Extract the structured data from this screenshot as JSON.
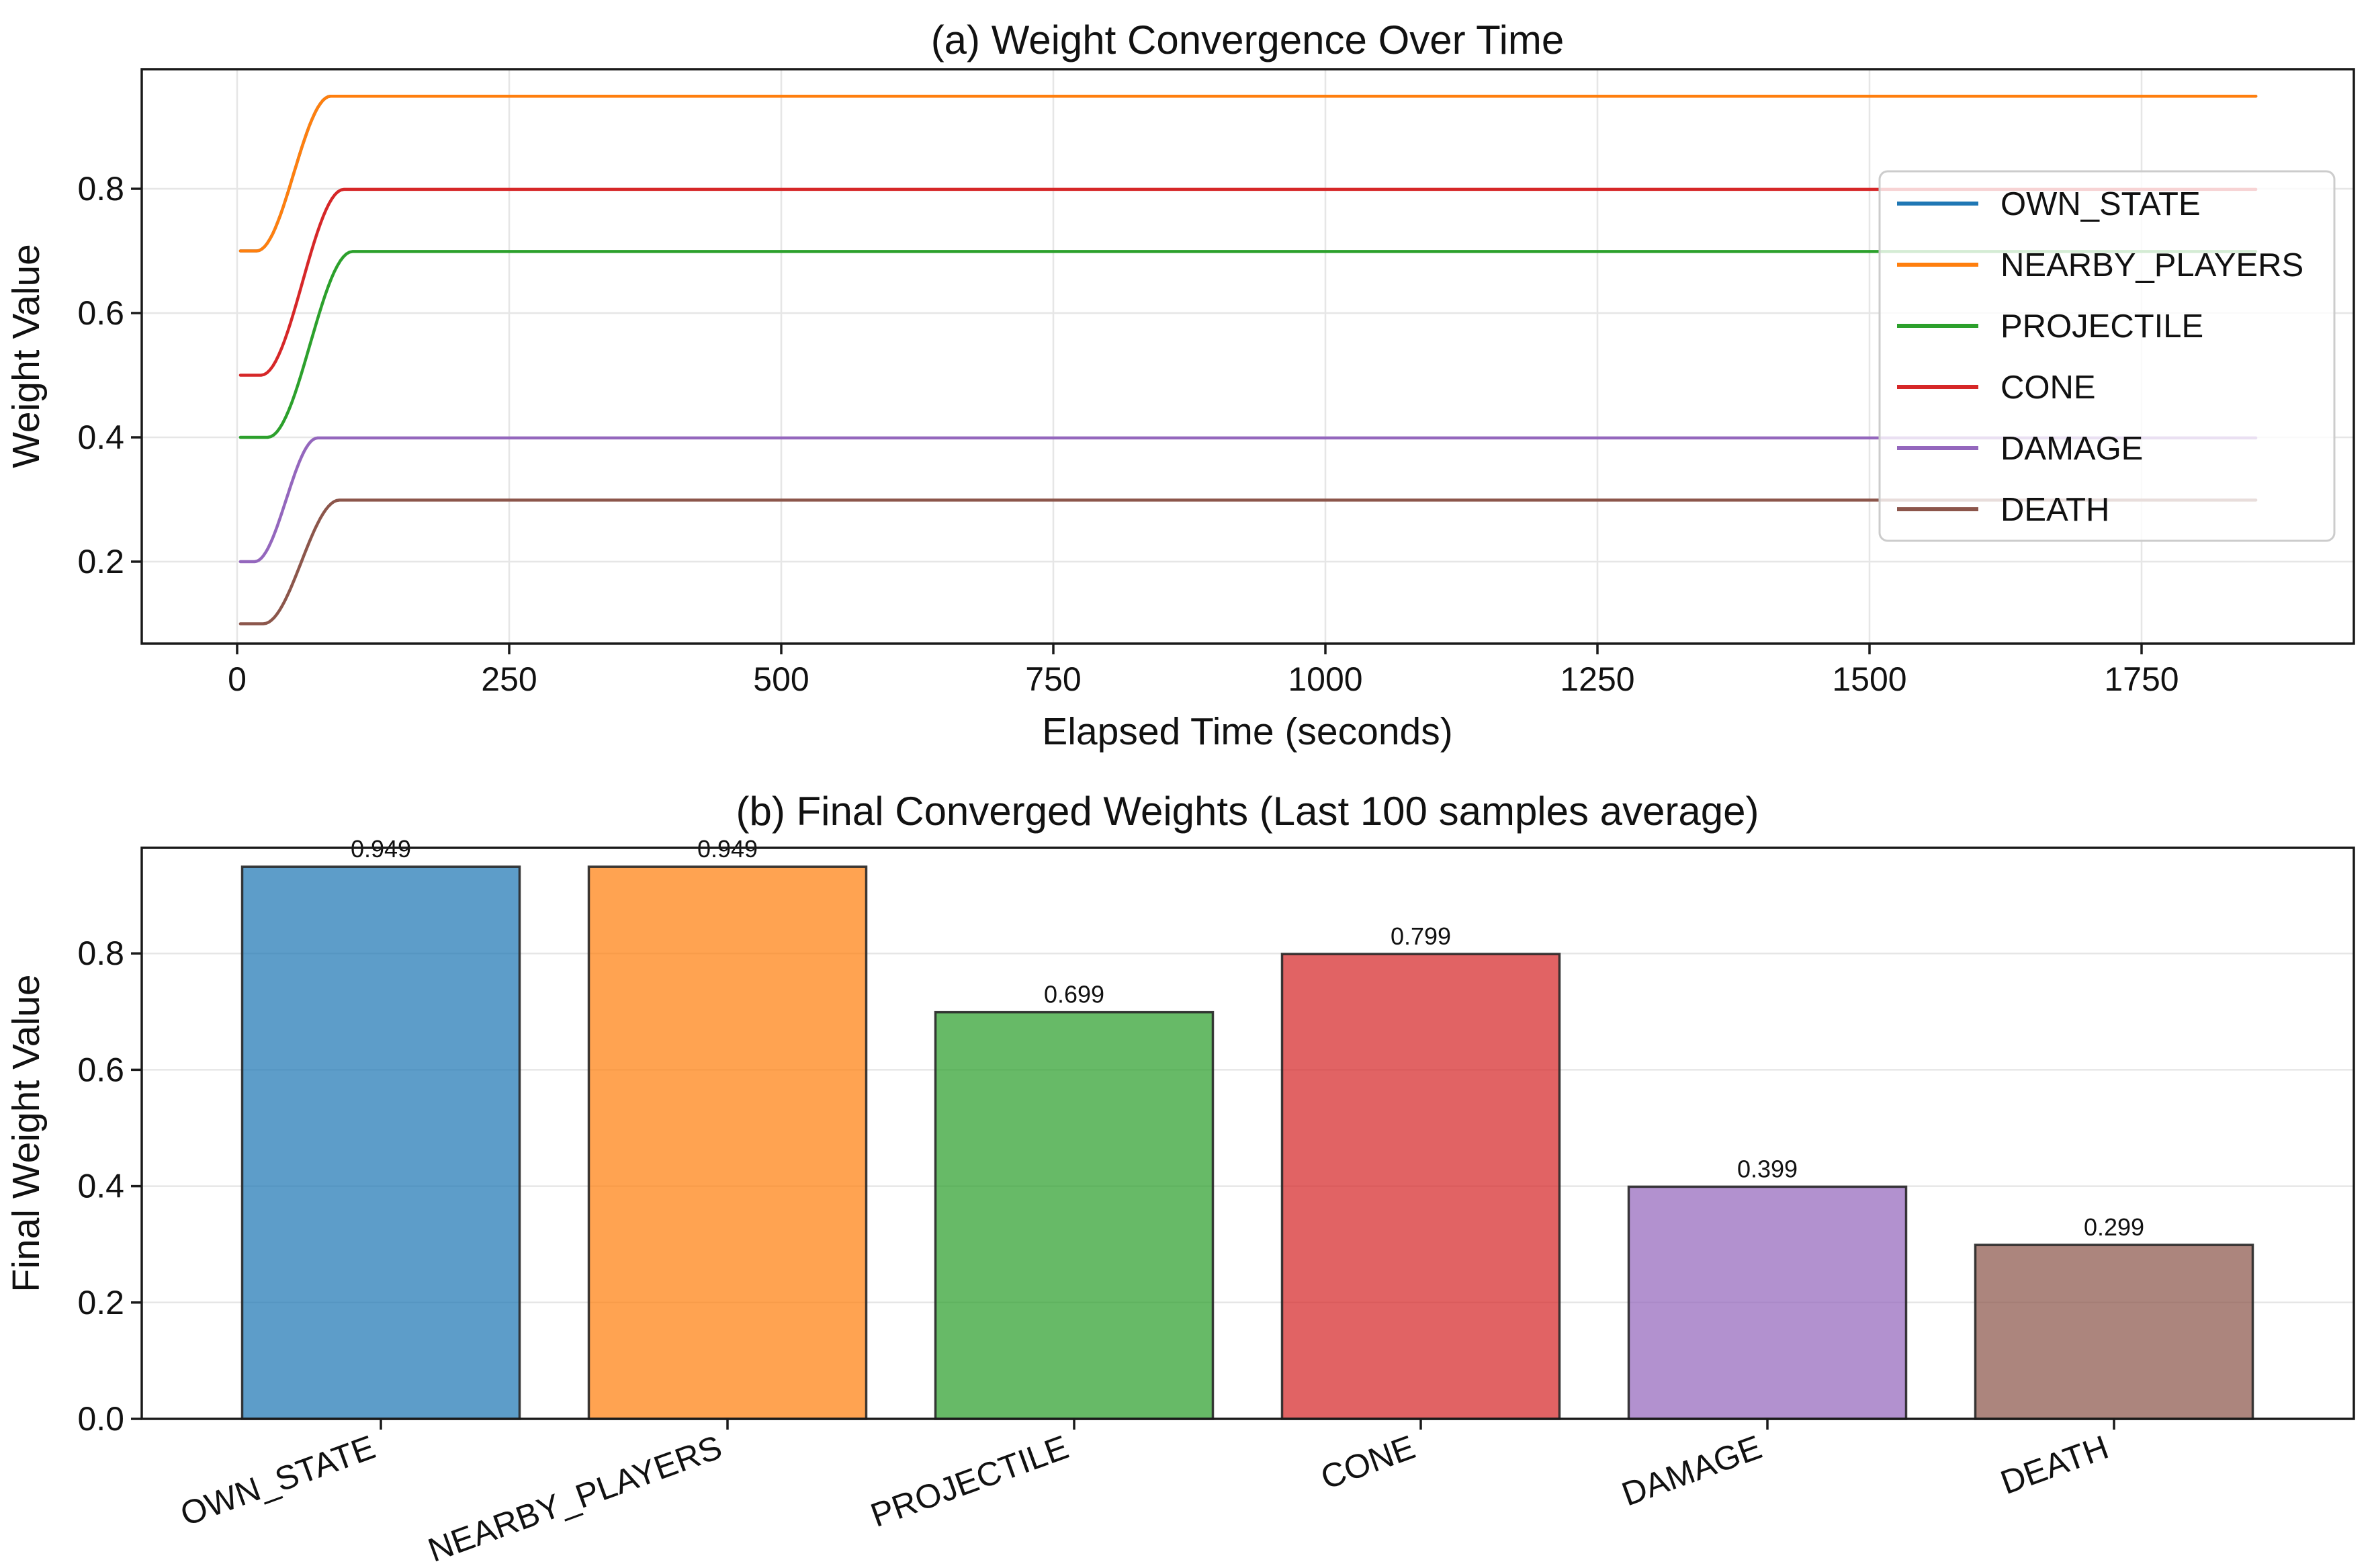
{
  "figure": {
    "background": "#ffffff",
    "text_color": "#111111",
    "grid_color": "#e6e6e6",
    "spine_color": "#1a1a1a",
    "legend": {
      "border_color": "#cccccc",
      "background": "rgba(255,255,255,0.8)",
      "entries": [
        "OWN_STATE",
        "NEARBY_PLAYERS",
        "PROJECTILE",
        "CONE",
        "DAMAGE",
        "DEATH"
      ]
    }
  },
  "chart_data": [
    {
      "type": "line",
      "title": "(a) Weight Convergence Over Time",
      "xlabel": "Elapsed Time (seconds)",
      "ylabel": "Weight Value",
      "x_ticks": [
        0,
        250,
        500,
        750,
        1000,
        1250,
        1500,
        1750
      ],
      "y_ticks": [
        0.2,
        0.4,
        0.6,
        0.8
      ],
      "xlim": [
        -90,
        1945
      ],
      "ylim": [
        0.068,
        0.992
      ],
      "grid": true,
      "legend_position": "center right",
      "series": [
        {
          "name": "OWN_STATE",
          "color": "#1f77b4",
          "start": 0.7,
          "end": 0.949,
          "t_start": 3,
          "ramp_start": 18,
          "ramp_end": 86,
          "t_end": 1855
        },
        {
          "name": "NEARBY_PLAYERS",
          "color": "#ff7f0e",
          "start": 0.7,
          "end": 0.949,
          "t_start": 3,
          "ramp_start": 18,
          "ramp_end": 86,
          "t_end": 1855
        },
        {
          "name": "PROJECTILE",
          "color": "#2ca02c",
          "start": 0.4,
          "end": 0.699,
          "t_start": 3,
          "ramp_start": 28,
          "ramp_end": 106,
          "t_end": 1855
        },
        {
          "name": "CONE",
          "color": "#d62728",
          "start": 0.5,
          "end": 0.799,
          "t_start": 3,
          "ramp_start": 22,
          "ramp_end": 98,
          "t_end": 1855
        },
        {
          "name": "DAMAGE",
          "color": "#9467bd",
          "start": 0.2,
          "end": 0.399,
          "t_start": 3,
          "ramp_start": 16,
          "ramp_end": 74,
          "t_end": 1855
        },
        {
          "name": "DEATH",
          "color": "#8c564b",
          "start": 0.1,
          "end": 0.299,
          "t_start": 3,
          "ramp_start": 24,
          "ramp_end": 94,
          "t_end": 1855
        }
      ]
    },
    {
      "type": "bar",
      "title": "(b) Final Converged Weights (Last 100 samples average)",
      "xlabel": "",
      "ylabel": "Final Weight Value",
      "categories": [
        "OWN_STATE",
        "NEARBY_PLAYERS",
        "PROJECTILE",
        "CONE",
        "DAMAGE",
        "DEATH"
      ],
      "values": [
        0.949,
        0.949,
        0.699,
        0.799,
        0.399,
        0.299
      ],
      "bar_labels": [
        "0.949",
        "0.949",
        "0.699",
        "0.799",
        "0.399",
        "0.299"
      ],
      "colors": [
        "#1f77b4",
        "#ff7f0e",
        "#2ca02c",
        "#d62728",
        "#9467bd",
        "#8c564b"
      ],
      "bar_alpha": 0.72,
      "edge_color": "#262626",
      "y_ticks": [
        0.0,
        0.2,
        0.4,
        0.6,
        0.8
      ],
      "ylim": [
        0,
        0.981
      ],
      "tick_rotation": 20,
      "grid": true
    }
  ]
}
